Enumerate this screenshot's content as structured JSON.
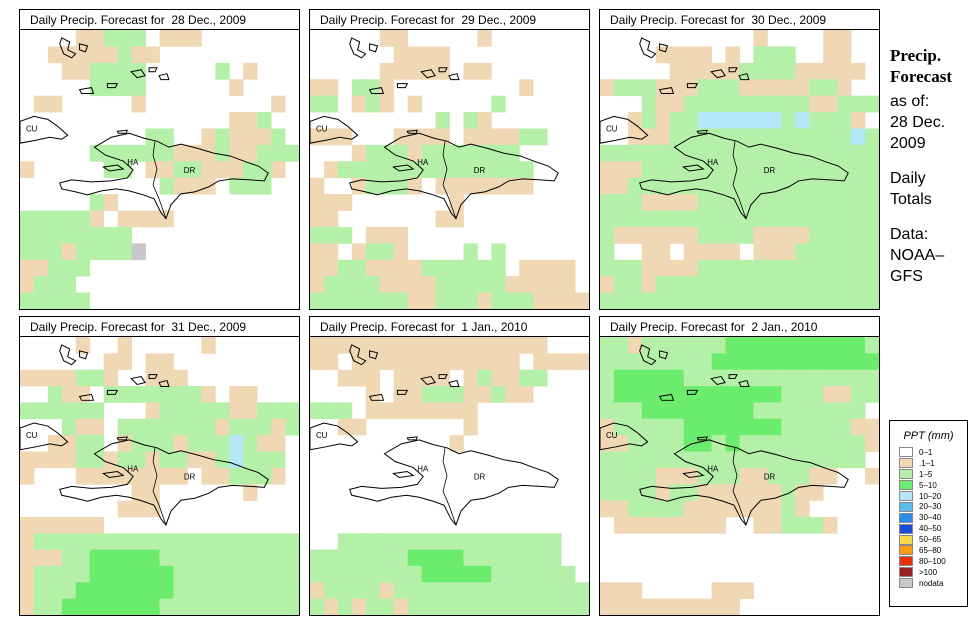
{
  "panels": [
    {
      "title": "Daily Precip. Forecast for  28 Dec., 2009",
      "date": "28 Dec., 2009"
    },
    {
      "title": "Daily Precip. Forecast for  29 Dec., 2009",
      "date": "29 Dec., 2009"
    },
    {
      "title": "Daily Precip. Forecast for  30 Dec., 2009",
      "date": "30 Dec., 2009"
    },
    {
      "title": "Daily Precip. Forecast for  31 Dec., 2009",
      "date": "31 Dec., 2009"
    },
    {
      "title": "Daily Precip. Forecast for  1 Jan., 2010",
      "date": "1 Jan., 2010"
    },
    {
      "title": "Daily Precip. Forecast for  2 Jan., 2010",
      "date": "2 Jan., 2010"
    }
  ],
  "map_labels": {
    "cuba": "CU",
    "haiti": "HA",
    "dominican_republic": "DR"
  },
  "sidebar": {
    "title_line1": "Precip.",
    "title_line2": "Forecast",
    "asof": "as of:",
    "date_line1": "28 Dec.",
    "date_line2": "2009",
    "daily1": "Daily",
    "daily2": "Totals",
    "data1": "Data:",
    "data2": "NOAA–",
    "data3": "GFS"
  },
  "legend": {
    "title": "PPT (mm)",
    "items": [
      {
        "label": "0–1",
        "color": "#ffffff"
      },
      {
        "label": ".1–1",
        "color": "#f0d8b4"
      },
      {
        "label": "1–5",
        "color": "#b4f0a8"
      },
      {
        "label": "5–10",
        "color": "#6cec6c"
      },
      {
        "label": "10–20",
        "color": "#b4e8f8"
      },
      {
        "label": "20–30",
        "color": "#5cbcec"
      },
      {
        "label": "30–40",
        "color": "#2c8cec"
      },
      {
        "label": "40–50",
        "color": "#1c4cd8"
      },
      {
        "label": "50–65",
        "color": "#f8d848"
      },
      {
        "label": "65–80",
        "color": "#f89c10"
      },
      {
        "label": "80–100",
        "color": "#e83010"
      },
      {
        "label": ">100",
        "color": "#982020"
      },
      {
        "label": "nodata",
        "color": "#c8c8c8"
      }
    ]
  },
  "grids": [
    [
      "....BBGGG.BBB.......",
      "..BBBBBGBB..........",
      "...BBGGGG.....G.B...",
      ".....GGGG......B....",
      ".BB.....B.........B.",
      "...............BBG..",
      ".........GG..BGBBBG.",
      ".....GGGGGGBBBGBBGGG",
      "B.....GG.BBGGBBBGGB.",
      "..........GBBB.GGG..",
      ".....GB.............",
      "GGGGGB.BBBB.........",
      "GGGGGGGG............",
      "GGGBGGGGN...........",
      "BBGGG...............",
      "BGGG................",
      "GGGGG..............."
    ],
    [
      ".....BB.....B.......",
      "......BBBB..........",
      ".....BBBBB.BB.......",
      "BB.GGB.........B....",
      "GG.BGB.B.....G......",
      ".........G.GB.......",
      "BBB...BBBB.BBBBGG...",
      "...BGGGBGGGGGGG.....",
      ".BGGGGGGGGGGGGGG....",
      "B..BGGGB.BBBBBBB....",
      "BBB.......B.........",
      "BB.......BB.........",
      "GGG.BBB.............",
      "BB.BGGB....G.G......",
      "BBGGBBBBGGGGGG.BBBB.",
      "BGGGGBBBBGGGGGBBBBB.",
      "GGGGGGGBBGGGBGGGBBBB"
    ],
    [
      "...........B....BB..",
      "....BBBB.B.GGG..BB..",
      ".....BBBBBGGGGBBBBB.",
      "BGGGBBBGGGBBBBBGGB..",
      "...GBBGGGGGGGGGBBGGG",
      "..BGBGGCCCCCCGCGGGB.",
      "..BBBGGGGGGGGGGGGGCG",
      "GGGGGGGGGGGGGGGGGGGG",
      "BBBGGGGGGGGGGGGGGGGG",
      "BBGGGGGGGGGGGGGGGGGG",
      "GGGBBBBGGGGGGGGGGGGG",
      "GGGGGGGGGGGGGGGGGGGG",
      "GBBBBBBGGGGBBBBGGGGG",
      "G..BB.BBBB.BBBGGGGGG",
      "GGGBBBBGGGGGGGGGGGGG",
      "BGGBGGGGGGGGGGGGGGGG",
      "GGGGGGGGGGGGGGGGGGGG"
    ],
    [
      "....B..B.....B......",
      "......BB.BB.........",
      "BBBBGGB..BBB........",
      "..GBB.GGGGGGGB.BB...",
      "GGGGGG...BGGGGGBBGGG",
      "...GBB.GGGGGGGBGGGBG",
      "..BBGG.BGGGBGGGCGBB.",
      "BBBBGGBGGBGGBBGCGGG.",
      "B...BBBBBBBB.BBGGGB.",
      "........BB......B...",
      ".......BBB..........",
      "BBBBBB..............",
      "BGGGGGGGGGGGGGGGGGGG",
      "BBBGGHHHHHGGGGGGGGGG",
      "BGGGGHHHHHHGGGGGGGGG",
      "BGGGHHHHHHHGGGGGGGGG",
      "BGGHHHHHHHGGGGGGGGGG"
    ],
    [
      "BBBBBBBBBBBBBBBBB...",
      "BB.BBBBBBBBBBBB.BBBB",
      "..BBB.BBBB.BGBBGG...",
      "....B.BBGGGBBGBB....",
      "GGG.BBBBBBBB........",
      "..BB.......B........",
      "..........B.........",
      "....................",
      "....................",
      "....................",
      "....................",
      "....................",
      "..GGGGGGGGGGGGGGGG..",
      "GGGGGGGHHHHGGGGGGG..",
      "GGGGGGGGHHHHHGGGGGG.",
      "BGGGGBGGGGGGGGGGGGGG",
      "GBGBGGBGGGGGGGGGGGGG"
    ],
    [
      "GGBGGGGGGHHHHHHHHHHG",
      "GGGGGGGGHHHHHHHHHHHH",
      "GHHHHHGGGGGGGGGGGGGG",
      "GHHHHHHHHHHHHGGGBBGG",
      "GGGHHHHHHHHGGGGGGGG.",
      "BGGGGGHHHHHHHGGGGGBB",
      "BBGGGGHHGHGGGGGGGGGB",
      "GGGGGGGGGGGGGGGGGGG.",
      "GGGGBBBGGGBBGGGBB..B",
      "GGGGBGGBBBBBBGBB....",
      "BBGGGGBBBBBBBGB.....",
      ".BBBBBBBB..BBGGGB...",
      "....................",
      "....................",
      "....................",
      "BBB.....BBB.........",
      "BBBBBBBBBB.........."
    ]
  ]
}
